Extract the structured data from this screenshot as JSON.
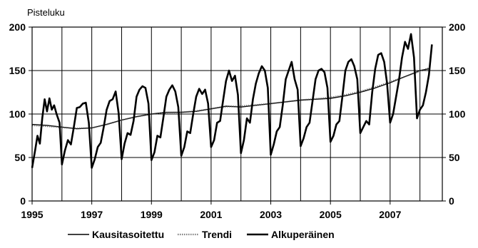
{
  "chart_data": {
    "type": "line",
    "ylabel": "Pisteluku",
    "ylim": [
      0,
      200
    ],
    "yticks": [
      0,
      50,
      100,
      150,
      200
    ],
    "xlim": [
      1995,
      2008.75
    ],
    "xticks": [
      "1995",
      "1997",
      "1999",
      "2001",
      "2003",
      "2005",
      "2007"
    ],
    "grid": true,
    "legend_position": "bottom",
    "series": [
      {
        "name": "Kausitasoitettu",
        "color": "#000000",
        "points": [
          [
            1995.0,
            88
          ],
          [
            1995.5,
            87
          ],
          [
            1996.0,
            85
          ],
          [
            1996.5,
            83
          ],
          [
            1997.0,
            84
          ],
          [
            1997.5,
            88
          ],
          [
            1998.0,
            93
          ],
          [
            1998.5,
            97
          ],
          [
            1999.0,
            100
          ],
          [
            1999.5,
            102
          ],
          [
            2000.0,
            102
          ],
          [
            2000.5,
            103
          ],
          [
            2001.0,
            106
          ],
          [
            2001.5,
            109
          ],
          [
            2002.0,
            108
          ],
          [
            2002.5,
            110
          ],
          [
            2003.0,
            112
          ],
          [
            2003.5,
            114
          ],
          [
            2004.0,
            116
          ],
          [
            2004.5,
            117
          ],
          [
            2005.0,
            118
          ],
          [
            2005.5,
            121
          ],
          [
            2006.0,
            125
          ],
          [
            2006.5,
            130
          ],
          [
            2007.0,
            136
          ],
          [
            2007.5,
            143
          ],
          [
            2008.0,
            150
          ],
          [
            2008.3,
            152
          ]
        ]
      },
      {
        "name": "Trendi",
        "color": "#555555",
        "points": [
          [
            1995.0,
            87
          ],
          [
            1995.5,
            86
          ],
          [
            1996.0,
            84.5
          ],
          [
            1996.5,
            83.5
          ],
          [
            1997.0,
            84
          ],
          [
            1997.5,
            88
          ],
          [
            1998.0,
            93
          ],
          [
            1998.5,
            97
          ],
          [
            1999.0,
            100
          ],
          [
            1999.5,
            101.5
          ],
          [
            2000.0,
            102
          ],
          [
            2000.5,
            103.5
          ],
          [
            2001.0,
            106
          ],
          [
            2001.5,
            108.5
          ],
          [
            2002.0,
            109
          ],
          [
            2002.5,
            110.5
          ],
          [
            2003.0,
            112
          ],
          [
            2003.5,
            114
          ],
          [
            2004.0,
            116
          ],
          [
            2004.5,
            117.5
          ],
          [
            2005.0,
            119
          ],
          [
            2005.5,
            122
          ],
          [
            2006.0,
            126
          ],
          [
            2006.5,
            131
          ],
          [
            2007.0,
            137
          ],
          [
            2007.5,
            143
          ],
          [
            2008.0,
            149
          ],
          [
            2008.3,
            153
          ]
        ]
      },
      {
        "name": "Alkuperäinen",
        "color": "#000000",
        "points": [
          [
            1995.0,
            38
          ],
          [
            1995.1,
            58
          ],
          [
            1995.18,
            75
          ],
          [
            1995.26,
            66
          ],
          [
            1995.34,
            95
          ],
          [
            1995.42,
            117
          ],
          [
            1995.5,
            103
          ],
          [
            1995.58,
            118
          ],
          [
            1995.66,
            105
          ],
          [
            1995.74,
            110
          ],
          [
            1995.82,
            100
          ],
          [
            1995.92,
            90
          ],
          [
            1996.0,
            42
          ],
          [
            1996.1,
            58
          ],
          [
            1996.2,
            70
          ],
          [
            1996.3,
            65
          ],
          [
            1996.4,
            85
          ],
          [
            1996.5,
            107
          ],
          [
            1996.6,
            108
          ],
          [
            1996.7,
            112
          ],
          [
            1996.8,
            113
          ],
          [
            1996.9,
            90
          ],
          [
            1997.0,
            38
          ],
          [
            1997.1,
            48
          ],
          [
            1997.2,
            62
          ],
          [
            1997.3,
            67
          ],
          [
            1997.4,
            85
          ],
          [
            1997.5,
            105
          ],
          [
            1997.6,
            115
          ],
          [
            1997.7,
            117
          ],
          [
            1997.8,
            126
          ],
          [
            1997.9,
            101
          ],
          [
            1998.0,
            48
          ],
          [
            1998.1,
            66
          ],
          [
            1998.2,
            78
          ],
          [
            1998.3,
            76
          ],
          [
            1998.4,
            92
          ],
          [
            1998.5,
            120
          ],
          [
            1998.6,
            128
          ],
          [
            1998.7,
            132
          ],
          [
            1998.8,
            130
          ],
          [
            1998.9,
            112
          ],
          [
            1999.0,
            47
          ],
          [
            1999.1,
            56
          ],
          [
            1999.2,
            75
          ],
          [
            1999.3,
            73
          ],
          [
            1999.4,
            96
          ],
          [
            1999.5,
            120
          ],
          [
            1999.6,
            128
          ],
          [
            1999.7,
            133
          ],
          [
            1999.8,
            126
          ],
          [
            1999.9,
            108
          ],
          [
            2000.0,
            52
          ],
          [
            2000.1,
            62
          ],
          [
            2000.2,
            80
          ],
          [
            2000.3,
            78
          ],
          [
            2000.4,
            100
          ],
          [
            2000.5,
            120
          ],
          [
            2000.6,
            129
          ],
          [
            2000.7,
            123
          ],
          [
            2000.8,
            128
          ],
          [
            2000.9,
            112
          ],
          [
            2001.0,
            62
          ],
          [
            2001.1,
            70
          ],
          [
            2001.2,
            90
          ],
          [
            2001.3,
            92
          ],
          [
            2001.4,
            115
          ],
          [
            2001.5,
            138
          ],
          [
            2001.6,
            150
          ],
          [
            2001.7,
            138
          ],
          [
            2001.8,
            144
          ],
          [
            2001.9,
            122
          ],
          [
            2002.0,
            55
          ],
          [
            2002.1,
            70
          ],
          [
            2002.2,
            95
          ],
          [
            2002.3,
            90
          ],
          [
            2002.4,
            117
          ],
          [
            2002.5,
            135
          ],
          [
            2002.6,
            147
          ],
          [
            2002.7,
            155
          ],
          [
            2002.8,
            150
          ],
          [
            2002.9,
            130
          ],
          [
            2003.0,
            53
          ],
          [
            2003.1,
            65
          ],
          [
            2003.2,
            80
          ],
          [
            2003.3,
            85
          ],
          [
            2003.4,
            110
          ],
          [
            2003.5,
            140
          ],
          [
            2003.6,
            150
          ],
          [
            2003.7,
            160
          ],
          [
            2003.8,
            140
          ],
          [
            2003.9,
            128
          ],
          [
            2004.0,
            63
          ],
          [
            2004.1,
            72
          ],
          [
            2004.2,
            85
          ],
          [
            2004.3,
            90
          ],
          [
            2004.4,
            115
          ],
          [
            2004.5,
            140
          ],
          [
            2004.6,
            150
          ],
          [
            2004.7,
            152
          ],
          [
            2004.8,
            148
          ],
          [
            2004.9,
            130
          ],
          [
            2005.0,
            68
          ],
          [
            2005.1,
            75
          ],
          [
            2005.2,
            88
          ],
          [
            2005.3,
            92
          ],
          [
            2005.4,
            120
          ],
          [
            2005.5,
            150
          ],
          [
            2005.6,
            160
          ],
          [
            2005.7,
            163
          ],
          [
            2005.8,
            155
          ],
          [
            2005.9,
            140
          ],
          [
            2006.0,
            78
          ],
          [
            2006.1,
            85
          ],
          [
            2006.2,
            92
          ],
          [
            2006.3,
            88
          ],
          [
            2006.4,
            125
          ],
          [
            2006.5,
            152
          ],
          [
            2006.6,
            168
          ],
          [
            2006.7,
            170
          ],
          [
            2006.8,
            160
          ],
          [
            2006.9,
            135
          ],
          [
            2007.0,
            90
          ],
          [
            2007.1,
            100
          ],
          [
            2007.2,
            120
          ],
          [
            2007.3,
            140
          ],
          [
            2007.4,
            165
          ],
          [
            2007.5,
            183
          ],
          [
            2007.6,
            175
          ],
          [
            2007.7,
            192
          ],
          [
            2007.8,
            165
          ],
          [
            2007.9,
            95
          ],
          [
            2008.0,
            105
          ],
          [
            2008.1,
            110
          ],
          [
            2008.2,
            125
          ],
          [
            2008.3,
            145
          ],
          [
            2008.4,
            180
          ]
        ]
      }
    ]
  }
}
